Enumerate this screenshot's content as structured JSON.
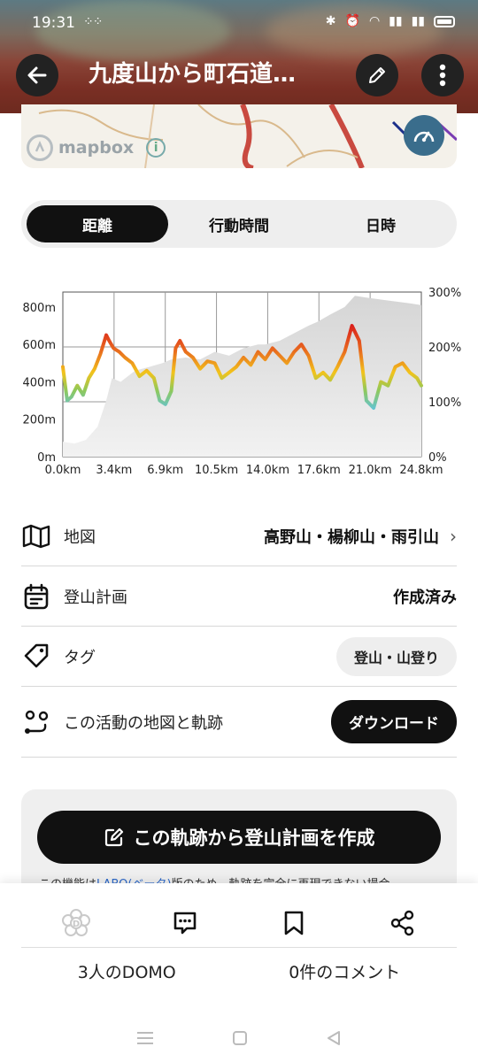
{
  "status_bar": {
    "time": "19:31"
  },
  "header": {
    "title": "九度山から町石道…"
  },
  "map": {
    "attribution": "mapbox"
  },
  "tabs": {
    "items": [
      "距離",
      "行動時間",
      "日時"
    ],
    "active": 0
  },
  "chart_data": {
    "type": "area",
    "x_label_ticks": [
      "0.0km",
      "3.4km",
      "6.9km",
      "10.5km",
      "14.0km",
      "17.6km",
      "21.0km",
      "24.8km"
    ],
    "y_left_ticks": [
      "800m",
      "600m",
      "400m",
      "200m",
      "0m"
    ],
    "y_right_ticks": [
      "300%",
      "200%",
      "100%",
      "0%"
    ],
    "x_range_km": [
      0,
      24.8
    ],
    "elevation_range_m": [
      0,
      880
    ],
    "grade_range_pct": [
      0,
      300
    ],
    "series": [
      {
        "x": [
          0,
          0.8,
          1.6,
          2.4,
          3.0,
          3.4,
          4.0,
          5.0,
          6.0,
          6.9,
          7.5,
          8.5,
          9.5,
          10.5,
          11.5,
          12.5,
          13.5,
          14.0,
          15.0,
          16.0,
          17.0,
          17.6,
          18.5,
          19.5,
          20.2,
          21.0,
          22.0,
          23.0,
          24.0,
          24.8
        ],
        "y": [
          80,
          70,
          90,
          160,
          300,
          420,
          400,
          460,
          480,
          500,
          520,
          530,
          520,
          560,
          540,
          580,
          600,
          600,
          620,
          660,
          700,
          720,
          760,
          800,
          860,
          850,
          840,
          830,
          820,
          810
        ]
      },
      {
        "x": [
          0,
          0.3,
          0.6,
          1.0,
          1.4,
          1.8,
          2.2,
          2.6,
          3.0,
          3.2,
          3.5,
          3.9,
          4.3,
          4.8,
          5.3,
          5.8,
          6.3,
          6.7,
          7.1,
          7.5,
          7.8,
          8.1,
          8.5,
          9.0,
          9.5,
          10.0,
          10.5,
          11.0,
          11.5,
          12.0,
          12.5,
          13.0,
          13.5,
          14.0,
          14.5,
          15.0,
          15.5,
          16.0,
          16.5,
          17.0,
          17.5,
          18.0,
          18.5,
          19.0,
          19.5,
          20.0,
          20.5,
          21.0,
          21.5,
          22.0,
          22.5,
          23.0,
          23.5,
          24.0,
          24.5,
          24.8
        ],
        "y": [
          480,
          300,
          320,
          380,
          330,
          420,
          470,
          550,
          650,
          620,
          580,
          560,
          530,
          500,
          430,
          460,
          420,
          300,
          280,
          350,
          580,
          620,
          560,
          530,
          470,
          510,
          500,
          420,
          450,
          480,
          530,
          490,
          560,
          520,
          580,
          540,
          500,
          560,
          600,
          540,
          420,
          450,
          410,
          480,
          560,
          700,
          620,
          300,
          260,
          400,
          380,
          480,
          500,
          450,
          420,
          380
        ]
      }
    ]
  },
  "rows": {
    "map_label": "地図",
    "map_value": "高野山・楊柳山・雨引山",
    "plan_label": "登山計画",
    "plan_value": "作成済み",
    "tag_label": "タグ",
    "tag_value": "登山・山登り",
    "download_label": "この活動の地図と軌跡",
    "download_button": "ダウンロード"
  },
  "plan_card": {
    "button": "この軌跡から登山計画を作成",
    "note_prefix": "この機能は",
    "note_link": "LABO(ベータ)",
    "note_suffix": "版のため、軌跡を完全に再現できない場合"
  },
  "footer": {
    "domo_count": "3人のDOMO",
    "comment_count": "0件のコメント"
  },
  "colors": {
    "accent": "#111111",
    "grade_high": "#d91c1c",
    "grade_low": "#5bc2e7"
  }
}
